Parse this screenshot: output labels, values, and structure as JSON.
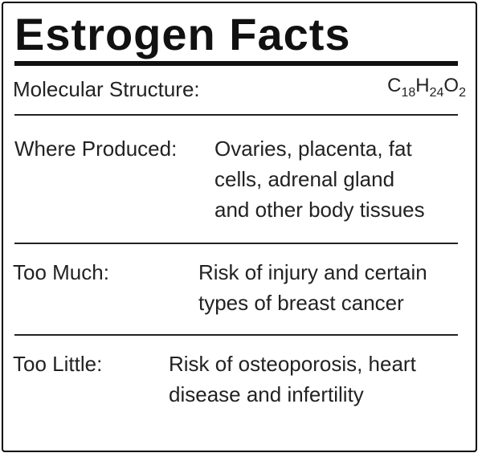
{
  "title": "Estrogen Facts",
  "rows": [
    {
      "label": "Molecular Structure:",
      "formula": [
        {
          "el": "C",
          "n": "18"
        },
        {
          "el": "H",
          "n": "24"
        },
        {
          "el": "O",
          "n": "2"
        }
      ]
    },
    {
      "label": "Where Produced:",
      "lines": [
        "Ovaries, placenta, fat",
        "cells, adrenal gland",
        "and other body tissues"
      ]
    },
    {
      "label": "Too Much:",
      "lines": [
        "Risk of injury and certain",
        "types of breast cancer"
      ]
    },
    {
      "label": "Too Little:",
      "lines": [
        "Risk of osteoporosis, heart",
        "disease and infertility"
      ]
    }
  ]
}
